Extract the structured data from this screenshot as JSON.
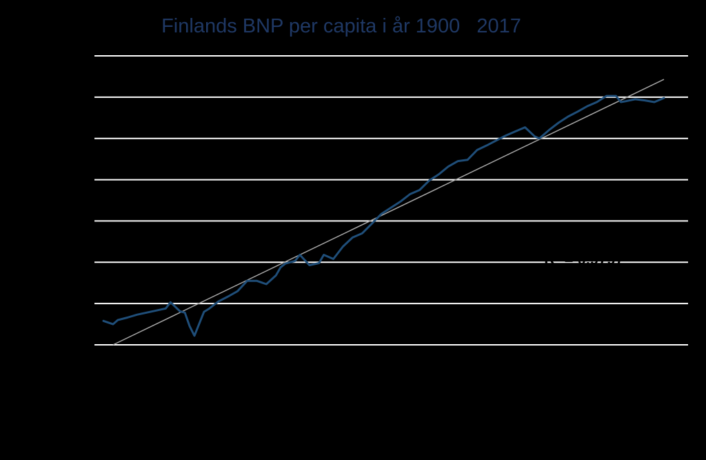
{
  "colors": {
    "background": "#000000",
    "title": "#1f3864",
    "grid": "#ffffff",
    "series": "#1f4e79",
    "trend": "#a6a6a6"
  },
  "chart_data": {
    "type": "line",
    "title": "Finlands BNP per capita i år 1900   2017",
    "xlabel": "",
    "ylabel": "",
    "xlim": [
      1900,
      2017
    ],
    "ylim": [
      0,
      7
    ],
    "grid": true,
    "gridlines_y": [
      0,
      1,
      2,
      3,
      4,
      5,
      6,
      7
    ],
    "series": [
      {
        "kind": "data",
        "x": [
          1900,
          1902,
          1903,
          1905,
          1907,
          1909,
          1911,
          1913,
          1914,
          1916,
          1917,
          1918,
          1919,
          1921,
          1922,
          1924,
          1926,
          1928,
          1930,
          1932,
          1934,
          1936,
          1937,
          1938,
          1940,
          1941,
          1943,
          1945,
          1946,
          1948,
          1950,
          1952,
          1954,
          1956,
          1958,
          1960,
          1962,
          1964,
          1966,
          1968,
          1970,
          1972,
          1974,
          1976,
          1978,
          1980,
          1982,
          1984,
          1986,
          1988,
          1990,
          1991,
          1993,
          1995,
          1997,
          1999,
          2001,
          2003,
          2005,
          2007,
          2008,
          2009,
          2011,
          2013,
          2015,
          2017
        ],
        "y": [
          0.58,
          0.5,
          0.6,
          0.66,
          0.73,
          0.78,
          0.83,
          0.88,
          1.03,
          0.81,
          0.78,
          0.45,
          0.22,
          0.8,
          0.87,
          1.05,
          1.17,
          1.3,
          1.55,
          1.55,
          1.47,
          1.68,
          1.88,
          1.97,
          2.03,
          2.18,
          1.93,
          1.98,
          2.18,
          2.08,
          2.38,
          2.6,
          2.7,
          2.93,
          3.17,
          3.32,
          3.47,
          3.65,
          3.75,
          3.98,
          4.13,
          4.32,
          4.45,
          4.48,
          4.72,
          4.83,
          4.95,
          5.07,
          5.17,
          5.27,
          5.05,
          5.0,
          5.2,
          5.38,
          5.53,
          5.65,
          5.78,
          5.88,
          6.03,
          6.03,
          5.88,
          5.9,
          5.95,
          5.92,
          5.88,
          5.98
        ]
      },
      {
        "kind": "trend",
        "x": [
          1902,
          2017
        ],
        "y": [
          0.0,
          6.43
        ]
      }
    ],
    "annotation": {
      "text": "R² = 0,9797",
      "x": 1992,
      "y": 1.95
    }
  }
}
